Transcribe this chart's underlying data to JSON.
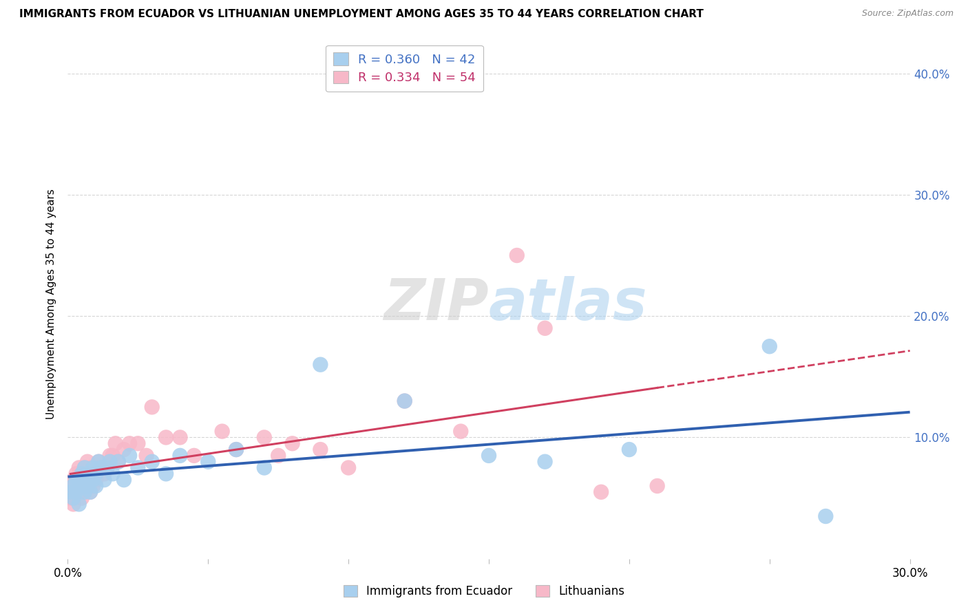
{
  "title": "IMMIGRANTS FROM ECUADOR VS LITHUANIAN UNEMPLOYMENT AMONG AGES 35 TO 44 YEARS CORRELATION CHART",
  "source": "Source: ZipAtlas.com",
  "ylabel": "Unemployment Among Ages 35 to 44 years",
  "xlim": [
    0.0,
    0.3
  ],
  "ylim": [
    0.0,
    0.42
  ],
  "xticks": [
    0.0,
    0.05,
    0.1,
    0.15,
    0.2,
    0.25,
    0.3
  ],
  "xtick_labels": [
    "0.0%",
    "",
    "",
    "",
    "",
    "",
    "30.0%"
  ],
  "yticks_right": [
    0.1,
    0.2,
    0.3,
    0.4
  ],
  "ytick_right_labels": [
    "10.0%",
    "20.0%",
    "30.0%",
    "40.0%"
  ],
  "blue_R": 0.36,
  "blue_N": 42,
  "pink_R": 0.334,
  "pink_N": 54,
  "blue_color": "#A8CFEE",
  "pink_color": "#F7B8C8",
  "blue_line_color": "#3060B0",
  "pink_line_color": "#D04060",
  "blue_scatter_x": [
    0.001,
    0.002,
    0.002,
    0.003,
    0.003,
    0.004,
    0.004,
    0.005,
    0.005,
    0.006,
    0.006,
    0.007,
    0.007,
    0.008,
    0.008,
    0.009,
    0.009,
    0.01,
    0.01,
    0.011,
    0.012,
    0.013,
    0.014,
    0.015,
    0.016,
    0.018,
    0.02,
    0.022,
    0.025,
    0.03,
    0.035,
    0.04,
    0.05,
    0.06,
    0.07,
    0.09,
    0.12,
    0.15,
    0.17,
    0.2,
    0.25,
    0.27
  ],
  "blue_scatter_y": [
    0.055,
    0.05,
    0.06,
    0.055,
    0.065,
    0.045,
    0.065,
    0.06,
    0.07,
    0.055,
    0.075,
    0.06,
    0.07,
    0.065,
    0.055,
    0.075,
    0.065,
    0.07,
    0.06,
    0.08,
    0.075,
    0.065,
    0.075,
    0.08,
    0.07,
    0.08,
    0.065,
    0.085,
    0.075,
    0.08,
    0.07,
    0.085,
    0.08,
    0.09,
    0.075,
    0.16,
    0.13,
    0.085,
    0.08,
    0.09,
    0.175,
    0.035
  ],
  "pink_scatter_x": [
    0.001,
    0.001,
    0.002,
    0.002,
    0.003,
    0.003,
    0.004,
    0.004,
    0.004,
    0.005,
    0.005,
    0.005,
    0.006,
    0.006,
    0.006,
    0.007,
    0.007,
    0.007,
    0.008,
    0.008,
    0.008,
    0.009,
    0.009,
    0.01,
    0.01,
    0.011,
    0.012,
    0.013,
    0.014,
    0.015,
    0.016,
    0.017,
    0.018,
    0.02,
    0.022,
    0.025,
    0.028,
    0.03,
    0.035,
    0.04,
    0.045,
    0.055,
    0.06,
    0.07,
    0.075,
    0.08,
    0.09,
    0.1,
    0.12,
    0.14,
    0.16,
    0.17,
    0.19,
    0.21
  ],
  "pink_scatter_y": [
    0.05,
    0.06,
    0.045,
    0.065,
    0.06,
    0.07,
    0.055,
    0.065,
    0.075,
    0.05,
    0.06,
    0.07,
    0.055,
    0.065,
    0.075,
    0.06,
    0.07,
    0.08,
    0.055,
    0.065,
    0.075,
    0.06,
    0.07,
    0.065,
    0.075,
    0.08,
    0.075,
    0.07,
    0.075,
    0.085,
    0.085,
    0.095,
    0.08,
    0.09,
    0.095,
    0.095,
    0.085,
    0.125,
    0.1,
    0.1,
    0.085,
    0.105,
    0.09,
    0.1,
    0.085,
    0.095,
    0.09,
    0.075,
    0.13,
    0.105,
    0.25,
    0.19,
    0.055,
    0.06
  ]
}
